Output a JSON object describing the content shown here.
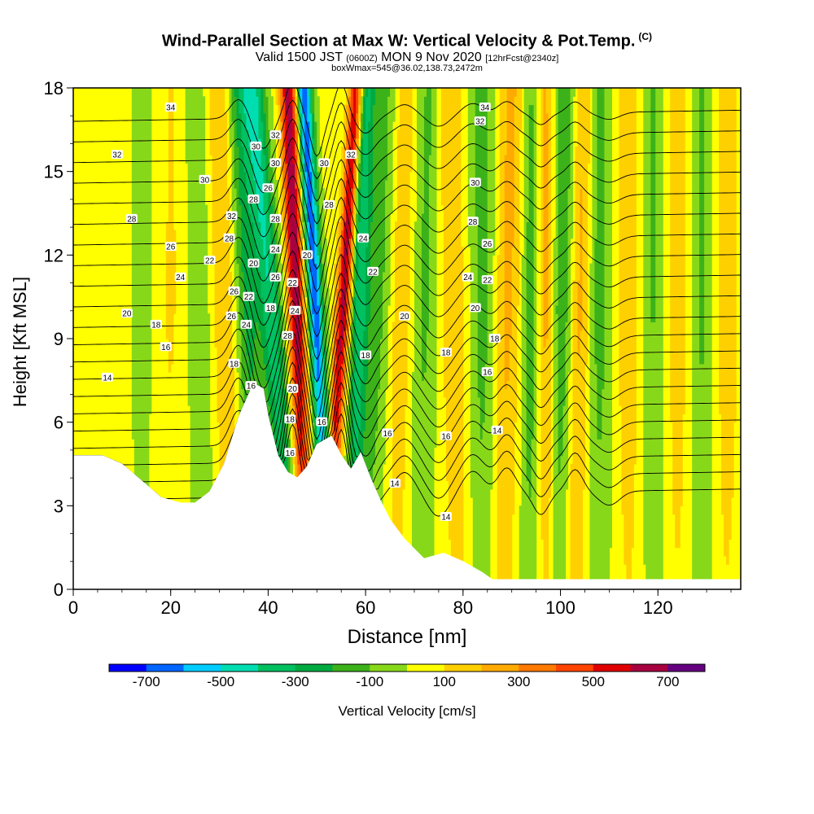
{
  "title": "Wind-Parallel Section at Max W: Vertical Velocity & Pot.Temp.",
  "title_mark": "(C)",
  "valid_prefix": "Valid 1500 JST",
  "valid_zulu": "(0600Z)",
  "valid_date": "MON 9 Nov 2020",
  "valid_fcst": "[12hrFcst@2340z]",
  "box_info": "boxWmax=545@36.02,138.73,2472m",
  "chart_data": {
    "type": "heatmap",
    "xlabel": "Distance [nm]",
    "ylabel": "Height [Kft MSL]",
    "xlim": [
      0,
      137
    ],
    "ylim": [
      0,
      18
    ],
    "x_ticks": [
      0,
      20,
      40,
      60,
      80,
      100,
      120
    ],
    "y_ticks": [
      0,
      3,
      6,
      9,
      12,
      15,
      18
    ],
    "colorbar": {
      "label": "Vertical Velocity [cm/s]",
      "tick_labels": [
        "-700",
        "-500",
        "-300",
        "-100",
        "100",
        "300",
        "500",
        "700"
      ],
      "tick_values": [
        -700,
        -500,
        -300,
        -100,
        100,
        300,
        500,
        700
      ],
      "levels": [
        -800,
        -700,
        -600,
        -500,
        -400,
        -300,
        -200,
        -100,
        0,
        100,
        200,
        300,
        400,
        500,
        600,
        700,
        800
      ],
      "colors": [
        "#0000ff",
        "#0066ff",
        "#00ccff",
        "#00ddb0",
        "#00c060",
        "#00aa40",
        "#3cb21a",
        "#88d81a",
        "#ffff00",
        "#ffd000",
        "#ffaa00",
        "#ff7a00",
        "#ff4400",
        "#e00000",
        "#a80040",
        "#660080"
      ]
    },
    "terrain_profile": {
      "x": [
        0,
        3,
        6,
        10,
        14,
        18,
        22,
        25,
        28,
        31,
        34,
        37,
        39,
        40,
        42,
        44,
        46,
        48,
        50,
        53,
        55,
        57,
        59,
        61,
        63,
        65,
        68,
        72,
        76,
        80,
        84,
        86,
        90,
        100,
        110,
        120,
        130,
        137
      ],
      "y": [
        4.8,
        4.8,
        4.8,
        4.5,
        3.9,
        3.3,
        3.1,
        3.1,
        3.5,
        4.5,
        6.2,
        7.4,
        7.2,
        6.2,
        4.8,
        4.2,
        4.0,
        4.4,
        5.2,
        5.5,
        4.8,
        4.3,
        4.9,
        4.0,
        3.2,
        2.5,
        1.8,
        1.1,
        1.3,
        1.0,
        0.6,
        0.35,
        0.35,
        0.35,
        0.35,
        0.35,
        0.35,
        0.35
      ]
    },
    "velocity_bands": [
      {
        "x_center": 7,
        "w_max": 60,
        "width_nm": 4,
        "tilt_nm_per_kft": 0.0
      },
      {
        "x_center": 14,
        "w_max": -80,
        "width_nm": 2.5,
        "tilt_nm_per_kft": 0.0
      },
      {
        "x_center": 20,
        "w_max": 80,
        "width_nm": 3,
        "tilt_nm_per_kft": 0.05
      },
      {
        "x_center": 26,
        "w_max": -100,
        "width_nm": 3,
        "tilt_nm_per_kft": -0.1
      },
      {
        "x_center": 31,
        "w_max": 180,
        "width_nm": 2.5,
        "tilt_nm_per_kft": -0.15
      },
      {
        "x_center": 36,
        "w_max": -260,
        "width_nm": 2.5,
        "tilt_nm_per_kft": -0.2
      },
      {
        "x_center": 41,
        "w_max": -420,
        "width_nm": 2.4,
        "tilt_nm_per_kft": -0.45
      },
      {
        "x_center": 46,
        "w_max": 650,
        "width_nm": 1.8,
        "tilt_nm_per_kft": -0.2
      },
      {
        "x_center": 50,
        "w_max": -720,
        "width_nm": 1.6,
        "tilt_nm_per_kft": -0.3
      },
      {
        "x_center": 55,
        "w_max": 620,
        "width_nm": 1.5,
        "tilt_nm_per_kft": 0.35
      },
      {
        "x_center": 58.5,
        "w_max": -380,
        "width_nm": 1.8,
        "tilt_nm_per_kft": 0.15
      },
      {
        "x_center": 62,
        "w_max": -180,
        "width_nm": 3,
        "tilt_nm_per_kft": 0.2
      },
      {
        "x_center": 67,
        "w_max": 150,
        "width_nm": 2.5,
        "tilt_nm_per_kft": 0.1
      },
      {
        "x_center": 72,
        "w_max": -150,
        "width_nm": 2.5,
        "tilt_nm_per_kft": 0.1
      },
      {
        "x_center": 78,
        "w_max": 160,
        "width_nm": 2.5,
        "tilt_nm_per_kft": -0.1
      },
      {
        "x_center": 84,
        "w_max": -170,
        "width_nm": 2.5,
        "tilt_nm_per_kft": 0.0
      },
      {
        "x_center": 89,
        "w_max": 200,
        "width_nm": 2.5,
        "tilt_nm_per_kft": 0.1
      },
      {
        "x_center": 94,
        "w_max": -200,
        "width_nm": 2.0,
        "tilt_nm_per_kft": 0.05
      },
      {
        "x_center": 97,
        "w_max": 230,
        "width_nm": 2.0,
        "tilt_nm_per_kft": -0.05
      },
      {
        "x_center": 100,
        "w_max": -230,
        "width_nm": 2.0,
        "tilt_nm_per_kft": 0.1
      },
      {
        "x_center": 104,
        "w_max": 200,
        "width_nm": 2.0,
        "tilt_nm_per_kft": 0.1
      },
      {
        "x_center": 108,
        "w_max": -170,
        "width_nm": 2.5,
        "tilt_nm_per_kft": 0.0
      },
      {
        "x_center": 114,
        "w_max": 130,
        "width_nm": 3,
        "tilt_nm_per_kft": 0.0
      },
      {
        "x_center": 119,
        "w_max": -150,
        "width_nm": 2.5,
        "tilt_nm_per_kft": 0.0
      },
      {
        "x_center": 124,
        "w_max": 120,
        "width_nm": 3,
        "tilt_nm_per_kft": 0.0
      },
      {
        "x_center": 129,
        "w_max": -160,
        "width_nm": 2.5,
        "tilt_nm_per_kft": 0.0
      },
      {
        "x_center": 134,
        "w_max": 120,
        "width_nm": 3,
        "tilt_nm_per_kft": 0.0
      }
    ],
    "potential_temperature_contours": {
      "levels": [
        14,
        16,
        18,
        20,
        22,
        24,
        26,
        28,
        30,
        32,
        34
      ],
      "labels": [
        {
          "text": "34",
          "x": 20,
          "y": 17.3
        },
        {
          "text": "32",
          "x": 9,
          "y": 15.6
        },
        {
          "text": "30",
          "x": 27,
          "y": 14.7
        },
        {
          "text": "28",
          "x": 12,
          "y": 13.3
        },
        {
          "text": "26",
          "x": 20,
          "y": 12.3
        },
        {
          "text": "24",
          "x": 22,
          "y": 11.2
        },
        {
          "text": "22",
          "x": 28,
          "y": 11.8
        },
        {
          "text": "20",
          "x": 11,
          "y": 9.9
        },
        {
          "text": "18",
          "x": 17,
          "y": 9.5
        },
        {
          "text": "16",
          "x": 19,
          "y": 8.7
        },
        {
          "text": "14",
          "x": 7,
          "y": 7.6
        },
        {
          "text": "32",
          "x": 32.5,
          "y": 13.4
        },
        {
          "text": "28",
          "x": 32,
          "y": 12.6
        },
        {
          "text": "26",
          "x": 33,
          "y": 10.7
        },
        {
          "text": "26",
          "x": 32.5,
          "y": 9.8
        },
        {
          "text": "18",
          "x": 33,
          "y": 8.1
        },
        {
          "text": "30",
          "x": 37.5,
          "y": 15.9
        },
        {
          "text": "28",
          "x": 37,
          "y": 14
        },
        {
          "text": "20",
          "x": 37,
          "y": 11.7
        },
        {
          "text": "22",
          "x": 36,
          "y": 10.5
        },
        {
          "text": "24",
          "x": 35.5,
          "y": 9.5
        },
        {
          "text": "16",
          "x": 36.5,
          "y": 7.3
        },
        {
          "text": "32",
          "x": 41.5,
          "y": 16.3
        },
        {
          "text": "30",
          "x": 41.5,
          "y": 15.3
        },
        {
          "text": "26",
          "x": 40,
          "y": 14.4
        },
        {
          "text": "28",
          "x": 41.5,
          "y": 13.3
        },
        {
          "text": "24",
          "x": 41.5,
          "y": 12.2
        },
        {
          "text": "26",
          "x": 41.5,
          "y": 11.2
        },
        {
          "text": "18",
          "x": 40.5,
          "y": 10.1
        },
        {
          "text": "28",
          "x": 44,
          "y": 9.1
        },
        {
          "text": "22",
          "x": 45,
          "y": 11
        },
        {
          "text": "24",
          "x": 45.5,
          "y": 10
        },
        {
          "text": "20",
          "x": 45,
          "y": 7.2
        },
        {
          "text": "18",
          "x": 44.5,
          "y": 6.1
        },
        {
          "text": "16",
          "x": 44.5,
          "y": 4.9
        },
        {
          "text": "20",
          "x": 48,
          "y": 12
        },
        {
          "text": "16",
          "x": 51,
          "y": 6
        },
        {
          "text": "30",
          "x": 51.5,
          "y": 15.3
        },
        {
          "text": "28",
          "x": 52.5,
          "y": 13.8
        },
        {
          "text": "32",
          "x": 57,
          "y": 15.6
        },
        {
          "text": "24",
          "x": 59.5,
          "y": 12.6
        },
        {
          "text": "22",
          "x": 61.5,
          "y": 11.4
        },
        {
          "text": "20",
          "x": 68,
          "y": 9.8
        },
        {
          "text": "18",
          "x": 60,
          "y": 8.4
        },
        {
          "text": "16",
          "x": 64.5,
          "y": 5.6
        },
        {
          "text": "14",
          "x": 66,
          "y": 3.8
        },
        {
          "text": "32",
          "x": 83.5,
          "y": 16.8
        },
        {
          "text": "30",
          "x": 82.5,
          "y": 14.6
        },
        {
          "text": "28",
          "x": 82,
          "y": 13.2
        },
        {
          "text": "26",
          "x": 85,
          "y": 12.4
        },
        {
          "text": "24",
          "x": 81,
          "y": 11.2
        },
        {
          "text": "22",
          "x": 85,
          "y": 11.1
        },
        {
          "text": "20",
          "x": 82.5,
          "y": 10.1
        },
        {
          "text": "18",
          "x": 76.5,
          "y": 8.5
        },
        {
          "text": "18",
          "x": 86.5,
          "y": 9
        },
        {
          "text": "16",
          "x": 76.5,
          "y": 5.5
        },
        {
          "text": "16",
          "x": 85,
          "y": 7.8
        },
        {
          "text": "14",
          "x": 76.5,
          "y": 2.6
        },
        {
          "text": "14",
          "x": 87,
          "y": 5.7
        },
        {
          "text": "34",
          "x": 84.5,
          "y": 17.3
        }
      ]
    }
  }
}
